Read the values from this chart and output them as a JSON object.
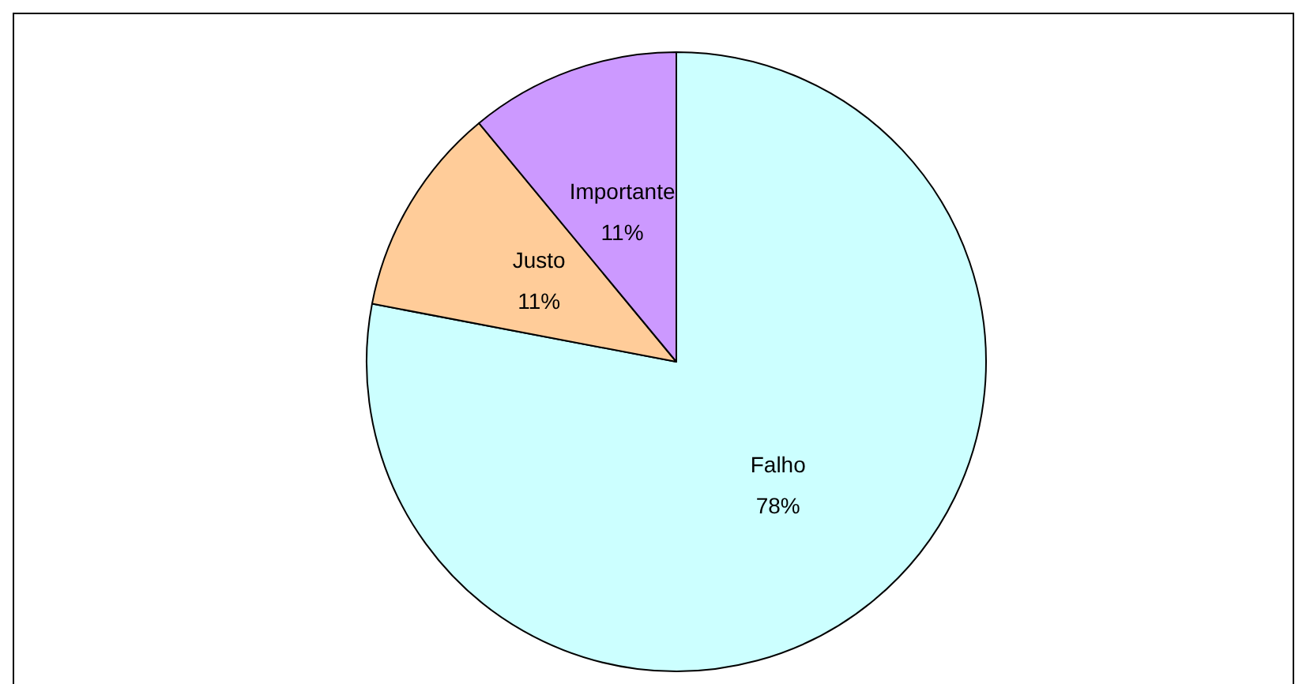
{
  "chart_data": {
    "type": "pie",
    "categories": [
      "Falho",
      "Justo",
      "Importante"
    ],
    "values": [
      78,
      11,
      11
    ],
    "value_labels": [
      "78%",
      "11%",
      "11%"
    ],
    "colors": [
      "#ccffff",
      "#ffcc99",
      "#cc99ff"
    ]
  }
}
